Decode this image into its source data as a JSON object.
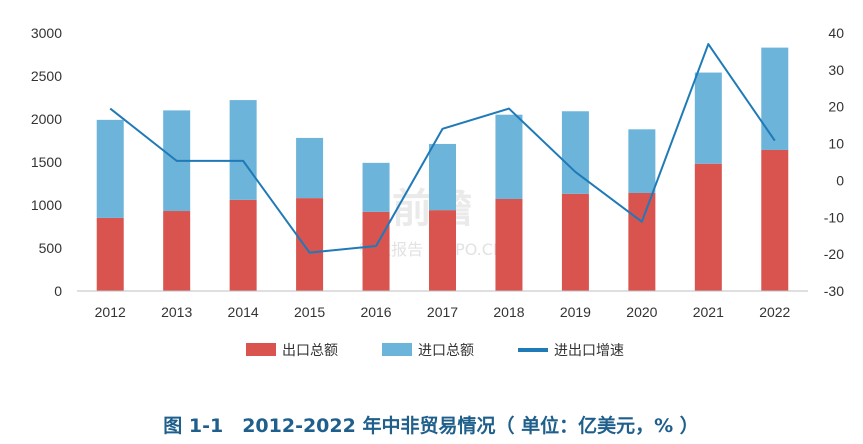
{
  "chart_data": {
    "type": "bar",
    "stacked": true,
    "title": "",
    "categories": [
      "2012",
      "2013",
      "2014",
      "2015",
      "2016",
      "2017",
      "2018",
      "2019",
      "2020",
      "2021",
      "2022"
    ],
    "series": [
      {
        "name": "出口总额",
        "kind": "bar",
        "axis": "left",
        "color": "#d9534f",
        "values": [
          850,
          930,
          1060,
          1080,
          920,
          940,
          1070,
          1130,
          1140,
          1480,
          1640
        ]
      },
      {
        "name": "进口总额",
        "kind": "bar",
        "axis": "left",
        "color": "#6cb4d9",
        "values": [
          1140,
          1170,
          1160,
          700,
          570,
          770,
          980,
          960,
          740,
          1060,
          1190
        ]
      },
      {
        "name": "进出口增速",
        "kind": "line",
        "axis": "right",
        "color": "#1f7ab8",
        "values": [
          19.5,
          5.3,
          5.3,
          -19.6,
          -17.8,
          14.0,
          19.5,
          2.3,
          -11.2,
          37.0,
          10.8
        ]
      }
    ],
    "y_left": {
      "min": 0,
      "max": 3000,
      "ticks": [
        0,
        500,
        1000,
        1500,
        2000,
        2500,
        3000
      ]
    },
    "y_right": {
      "min": -30,
      "max": 40,
      "ticks": [
        -30,
        -20,
        -10,
        0,
        10,
        20,
        30,
        40
      ]
    },
    "legend_position": "bottom",
    "grid": false
  },
  "caption": "图 1-1　2012-2022 年中非贸易情况（ 单位：亿美元，% ）",
  "watermark": {
    "main": "前瞻",
    "sub": "行业报告 POIPO.CN"
  }
}
